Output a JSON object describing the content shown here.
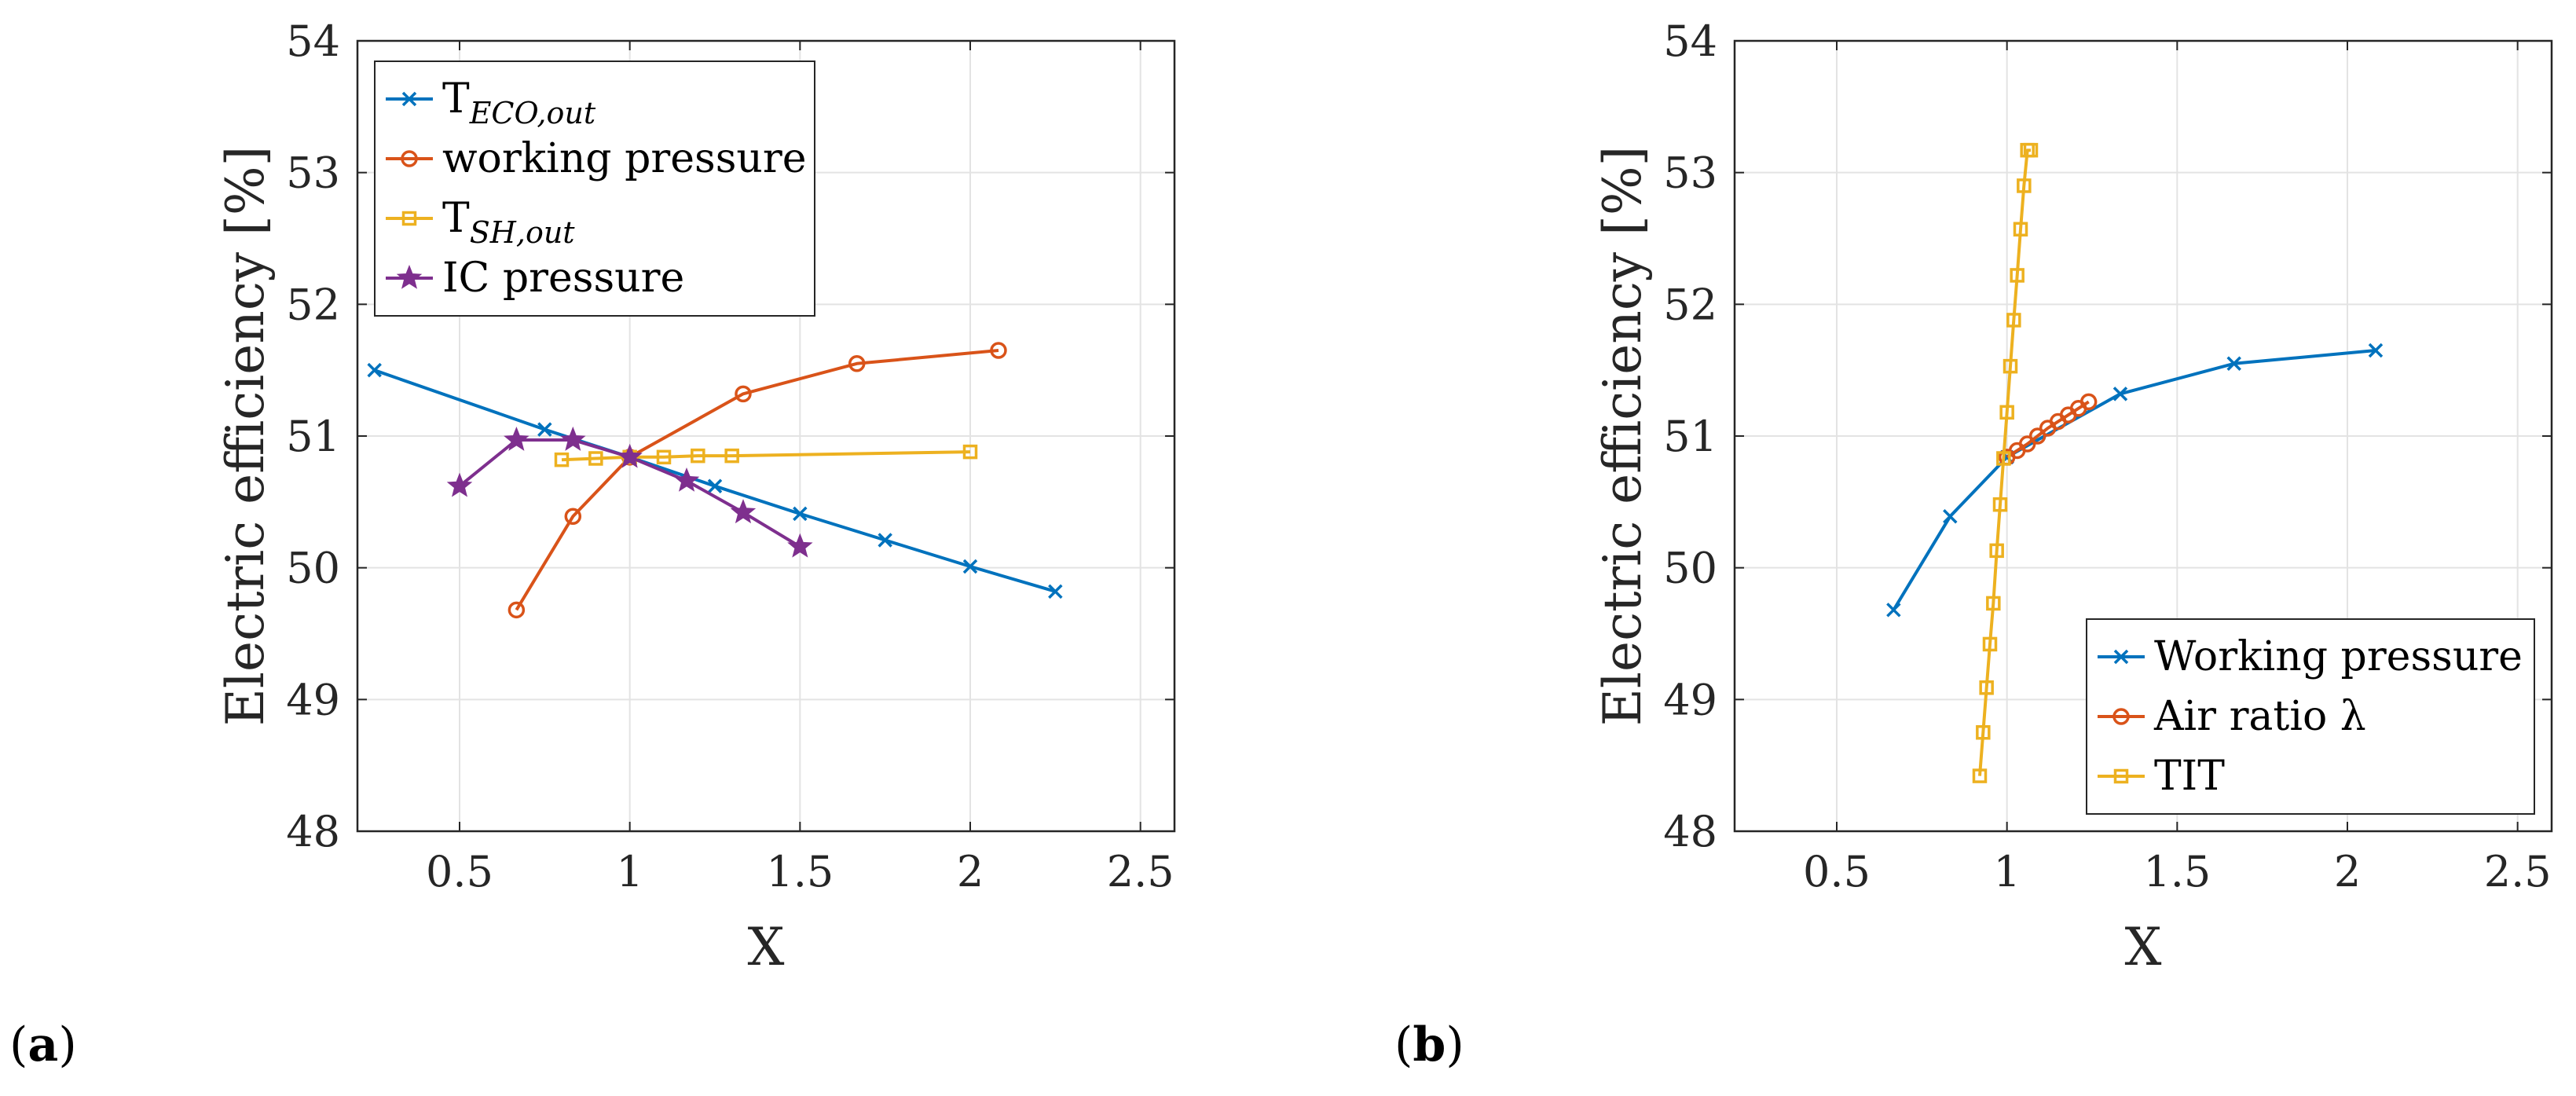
{
  "chart_data": [
    {
      "type": "line",
      "panel_label": "a",
      "xlabel": "X",
      "ylabel": "Electric efficiency [%]",
      "xlim": [
        0.2,
        2.6
      ],
      "ylim": [
        48,
        54
      ],
      "xticks": [
        "0.5",
        "1",
        "1.5",
        "2",
        "2.5"
      ],
      "yticks": [
        "48",
        "49",
        "50",
        "51",
        "52",
        "53",
        "54"
      ],
      "grid": true,
      "legend_position": "top-left",
      "series": [
        {
          "name": "T",
          "name_sub": "ECO,out",
          "color": "#0072BD",
          "marker": "x",
          "x": [
            0.25,
            0.75,
            1.0,
            1.25,
            1.5,
            1.75,
            2.0,
            2.25
          ],
          "y": [
            51.5,
            51.05,
            50.84,
            50.62,
            50.41,
            50.21,
            50.01,
            49.82
          ]
        },
        {
          "name": "working pressure",
          "name_sub": "",
          "color": "#D95319",
          "marker": "o",
          "x": [
            0.667,
            0.833,
            1.0,
            1.333,
            1.667,
            2.083
          ],
          "y": [
            49.68,
            50.39,
            50.84,
            51.32,
            51.55,
            51.65
          ]
        },
        {
          "name": "T",
          "name_sub": "SH,out",
          "color": "#EDB120",
          "marker": "s",
          "x": [
            0.8,
            0.9,
            1.0,
            1.1,
            1.2,
            1.3,
            2.0
          ],
          "y": [
            50.82,
            50.83,
            50.84,
            50.84,
            50.85,
            50.85,
            50.88
          ]
        },
        {
          "name": "IC pressure",
          "name_sub": "",
          "color": "#7E2F8E",
          "marker": "star",
          "x": [
            0.5,
            0.667,
            0.833,
            1.0,
            1.167,
            1.333,
            1.5
          ],
          "y": [
            50.62,
            50.97,
            50.97,
            50.84,
            50.66,
            50.42,
            50.16
          ]
        }
      ]
    },
    {
      "type": "line",
      "panel_label": "b",
      "xlabel": "X",
      "ylabel": "Electric efficiency [%]",
      "xlim": [
        0.2,
        2.6
      ],
      "ylim": [
        48,
        54
      ],
      "xticks": [
        "0.5",
        "1",
        "1.5",
        "2",
        "2.5"
      ],
      "yticks": [
        "48",
        "49",
        "50",
        "51",
        "52",
        "53",
        "54"
      ],
      "grid": true,
      "legend_position": "bottom-right",
      "series": [
        {
          "name": "Working pressure",
          "name_sub": "",
          "color": "#0072BD",
          "marker": "x",
          "x": [
            0.667,
            0.833,
            1.0,
            1.333,
            1.667,
            2.083
          ],
          "y": [
            49.68,
            50.39,
            50.84,
            51.32,
            51.55,
            51.65
          ]
        },
        {
          "name": "Air ratio λ",
          "name_sub": "",
          "color": "#D95319",
          "marker": "o",
          "x": [
            1.0,
            1.03,
            1.06,
            1.09,
            1.12,
            1.15,
            1.18,
            1.21,
            1.24
          ],
          "y": [
            50.84,
            50.89,
            50.94,
            51.0,
            51.06,
            51.11,
            51.16,
            51.21,
            51.26
          ]
        },
        {
          "name": "TIT",
          "name_sub": "",
          "color": "#EDB120",
          "marker": "s",
          "x": [
            0.92,
            0.93,
            0.94,
            0.95,
            0.96,
            0.97,
            0.98,
            0.99,
            1.0,
            1.01,
            1.02,
            1.03,
            1.04,
            1.05,
            1.06,
            1.07
          ],
          "y": [
            48.42,
            48.75,
            49.09,
            49.42,
            49.73,
            50.13,
            50.48,
            50.83,
            51.18,
            51.53,
            51.88,
            52.22,
            52.57,
            52.9,
            53.17,
            53.17
          ]
        }
      ]
    }
  ]
}
